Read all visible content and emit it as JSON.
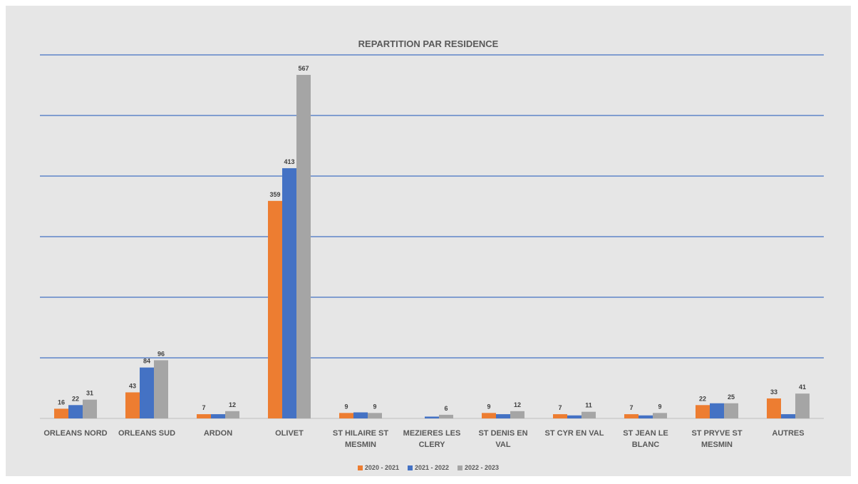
{
  "chart_data": {
    "type": "bar",
    "title": "REPARTITION PAR RESIDENCE",
    "categories": [
      "ORLEANS NORD",
      "ORLEANS SUD",
      "ARDON",
      "OLIVET",
      "ST HILAIRE ST MESMIN",
      "MEZIERES LES CLERY",
      "ST DENIS EN VAL",
      "ST CYR EN VAL",
      "ST JEAN LE BLANC",
      "ST PRYVE ST MESMIN",
      "AUTRES"
    ],
    "series": [
      {
        "name": "2020 - 2021",
        "color": "#ed7d31",
        "values": [
          16,
          43,
          7,
          359,
          9,
          0,
          9,
          7,
          7,
          22,
          33
        ],
        "labels": [
          "16",
          "43",
          "7",
          "359",
          "9",
          "",
          "9",
          "7",
          "7",
          "22",
          "33"
        ]
      },
      {
        "name": "2021 - 2022",
        "color": "#4472c4",
        "values": [
          22,
          84,
          7,
          413,
          10,
          3,
          7,
          5,
          5,
          25,
          7
        ],
        "labels": [
          "22",
          "84",
          "",
          "413",
          "",
          "",
          "",
          "",
          "",
          "",
          ""
        ]
      },
      {
        "name": "2022 - 2023",
        "color": "#a5a5a5",
        "values": [
          31,
          96,
          12,
          567,
          9,
          6,
          12,
          11,
          9,
          25,
          41
        ],
        "labels": [
          "31",
          "96",
          "12",
          "567",
          "9",
          "6",
          "12",
          "11",
          "9",
          "25",
          "41"
        ]
      }
    ],
    "ylim": [
      0,
      600
    ],
    "gridlines": [
      0,
      100,
      200,
      300,
      400,
      500,
      600
    ],
    "grid_color": "#4472c4",
    "legend_position": "bottom",
    "xlabel": "",
    "ylabel": ""
  }
}
